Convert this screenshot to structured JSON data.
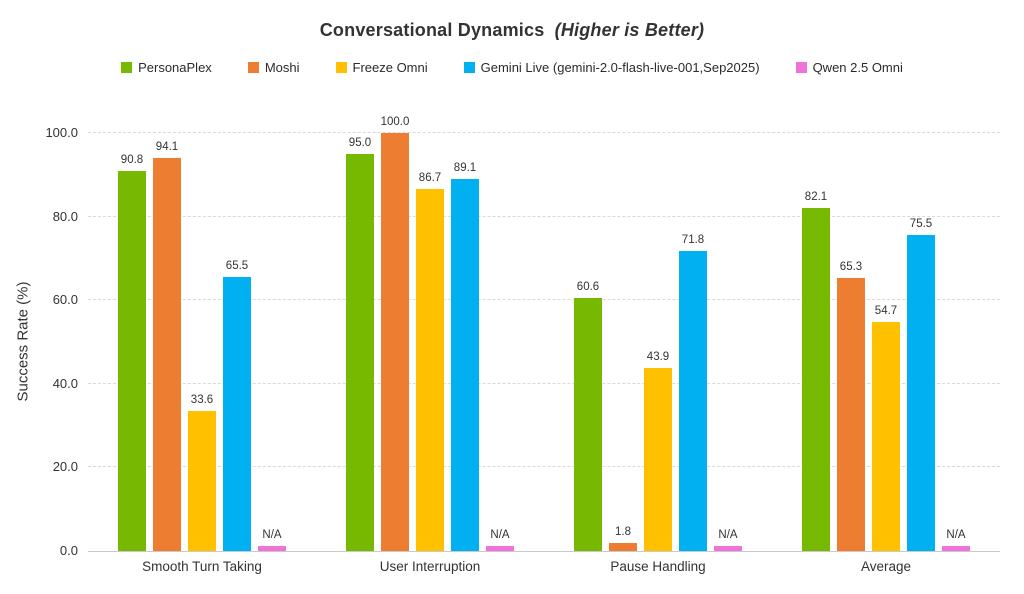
{
  "title": {
    "main": "Conversational Dynamics",
    "emphasis": "(Higher is Better)"
  },
  "chart_data": {
    "type": "bar",
    "title": "Conversational Dynamics (Higher is Better)",
    "xlabel": "",
    "ylabel": "Success Rate (%)",
    "ylim": [
      0,
      100
    ],
    "yticks": [
      0,
      20,
      40,
      60,
      80,
      100
    ],
    "ytick_format": "one_decimal",
    "grid": "dashed-horizontal",
    "legend_position": "top",
    "na_label": "N/A",
    "categories": [
      "Smooth Turn Taking",
      "User Interruption",
      "Pause Handling",
      "Average"
    ],
    "series": [
      {
        "name": "PersonaPlex",
        "color": "#76B900",
        "values": [
          90.8,
          95.0,
          60.6,
          82.1
        ]
      },
      {
        "name": "Moshi",
        "color": "#ED7D31",
        "values": [
          94.1,
          100.0,
          1.8,
          65.3
        ]
      },
      {
        "name": "Freeze Omni",
        "color": "#FFC000",
        "values": [
          33.6,
          86.7,
          43.9,
          54.7
        ]
      },
      {
        "name": "Gemini Live (gemini-2.0-flash-live-001,Sep2025)",
        "color": "#00B0F0",
        "values": [
          65.5,
          89.1,
          71.8,
          75.5
        ]
      },
      {
        "name": "Qwen 2.5 Omni",
        "color": "#EE72D8",
        "values": [
          null,
          null,
          null,
          null
        ]
      }
    ]
  }
}
